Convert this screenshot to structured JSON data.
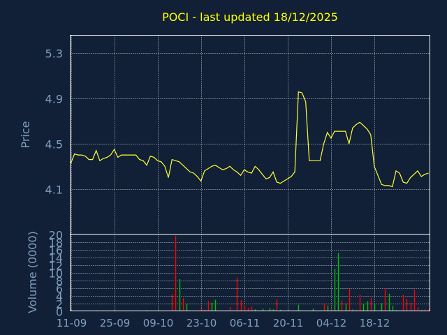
{
  "chart_data": {
    "type": "line",
    "title": "POCI - last updated 18/12/2025",
    "price_panel": {
      "ylabel": "Price",
      "yticks": [
        4.1,
        4.5,
        4.9,
        5.3
      ],
      "ylim": [
        3.7,
        5.46
      ],
      "values": [
        4.33,
        4.41,
        4.4,
        4.4,
        4.39,
        4.36,
        4.36,
        4.44,
        4.35,
        4.37,
        4.38,
        4.4,
        4.45,
        4.38,
        4.4,
        4.4,
        4.4,
        4.4,
        4.4,
        4.36,
        4.35,
        4.31,
        4.39,
        4.38,
        4.35,
        4.34,
        4.3,
        4.2,
        4.36,
        4.35,
        4.34,
        4.31,
        4.28,
        4.25,
        4.24,
        4.21,
        4.17,
        4.26,
        4.28,
        4.3,
        4.31,
        4.29,
        4.27,
        4.28,
        4.3,
        4.27,
        4.25,
        4.22,
        4.27,
        4.25,
        4.24,
        4.3,
        4.27,
        4.23,
        4.19,
        4.2,
        4.25,
        4.16,
        4.15,
        4.17,
        4.19,
        4.21,
        4.25,
        4.96,
        4.95,
        4.87,
        4.35,
        4.35,
        4.35,
        4.35,
        4.5,
        4.6,
        4.55,
        4.61,
        4.61,
        4.61,
        4.61,
        4.5,
        4.64,
        4.67,
        4.69,
        4.66,
        4.63,
        4.58,
        4.3,
        4.22,
        4.14,
        4.13,
        4.13,
        4.12,
        4.26,
        4.24,
        4.16,
        4.15,
        4.2,
        4.23,
        4.26,
        4.21,
        4.23,
        4.24
      ]
    },
    "volume_panel": {
      "ylabel": "Volume (0000)",
      "ylim": [
        0,
        20
      ],
      "yticks": [
        0,
        2,
        4,
        6,
        8,
        10,
        12,
        14,
        16,
        18,
        20
      ],
      "bars": [
        {
          "i": 7,
          "v": 0.1,
          "c": "red"
        },
        {
          "i": 12,
          "v": 0.1,
          "c": "red"
        },
        {
          "i": 21,
          "v": 0.2,
          "c": "green"
        },
        {
          "i": 28,
          "v": 4.3,
          "c": "red"
        },
        {
          "i": 29,
          "v": 19.6,
          "c": "red"
        },
        {
          "i": 30,
          "v": 8.3,
          "c": "green"
        },
        {
          "i": 31,
          "v": 3.4,
          "c": "red"
        },
        {
          "i": 32,
          "v": 1.8,
          "c": "green"
        },
        {
          "i": 36,
          "v": 0.7,
          "c": "red"
        },
        {
          "i": 37,
          "v": 0.3,
          "c": "red"
        },
        {
          "i": 38,
          "v": 2.6,
          "c": "red"
        },
        {
          "i": 39,
          "v": 2.1,
          "c": "green"
        },
        {
          "i": 40,
          "v": 2.9,
          "c": "green"
        },
        {
          "i": 44,
          "v": 1.0,
          "c": "red"
        },
        {
          "i": 46,
          "v": 8.6,
          "c": "red"
        },
        {
          "i": 47,
          "v": 2.8,
          "c": "red"
        },
        {
          "i": 48,
          "v": 1.5,
          "c": "red"
        },
        {
          "i": 49,
          "v": 0.8,
          "c": "red"
        },
        {
          "i": 50,
          "v": 1.1,
          "c": "red"
        },
        {
          "i": 51,
          "v": 0.4,
          "c": "green"
        },
        {
          "i": 53,
          "v": 0.6,
          "c": "green"
        },
        {
          "i": 55,
          "v": 0.7,
          "c": "green"
        },
        {
          "i": 56,
          "v": 0.4,
          "c": "green"
        },
        {
          "i": 57,
          "v": 3.0,
          "c": "red"
        },
        {
          "i": 58,
          "v": 0.3,
          "c": "green"
        },
        {
          "i": 63,
          "v": 1.6,
          "c": "green"
        },
        {
          "i": 67,
          "v": 0.6,
          "c": "green"
        },
        {
          "i": 70,
          "v": 2.0,
          "c": "red"
        },
        {
          "i": 71,
          "v": 1.4,
          "c": "green"
        },
        {
          "i": 72,
          "v": 0.5,
          "c": "red"
        },
        {
          "i": 73,
          "v": 11.0,
          "c": "green"
        },
        {
          "i": 74,
          "v": 15.1,
          "c": "green"
        },
        {
          "i": 75,
          "v": 2.7,
          "c": "red"
        },
        {
          "i": 76,
          "v": 1.8,
          "c": "green"
        },
        {
          "i": 77,
          "v": 5.7,
          "c": "red"
        },
        {
          "i": 78,
          "v": 0.4,
          "c": "green"
        },
        {
          "i": 79,
          "v": 0.3,
          "c": "red"
        },
        {
          "i": 80,
          "v": 4.3,
          "c": "red"
        },
        {
          "i": 81,
          "v": 1.9,
          "c": "green"
        },
        {
          "i": 82,
          "v": 2.5,
          "c": "green"
        },
        {
          "i": 83,
          "v": 3.4,
          "c": "red"
        },
        {
          "i": 84,
          "v": 1.9,
          "c": "green"
        },
        {
          "i": 86,
          "v": 2.0,
          "c": "green"
        },
        {
          "i": 87,
          "v": 5.8,
          "c": "red"
        },
        {
          "i": 88,
          "v": 4.5,
          "c": "green"
        },
        {
          "i": 89,
          "v": 1.3,
          "c": "green"
        },
        {
          "i": 90,
          "v": 0.2,
          "c": "green"
        },
        {
          "i": 92,
          "v": 4.2,
          "c": "red"
        },
        {
          "i": 93,
          "v": 3.2,
          "c": "red"
        },
        {
          "i": 94,
          "v": 2.1,
          "c": "red"
        },
        {
          "i": 95,
          "v": 5.6,
          "c": "red"
        },
        {
          "i": 96,
          "v": 0.9,
          "c": "red"
        },
        {
          "i": 97,
          "v": 0.2,
          "c": "green"
        },
        {
          "i": 98,
          "v": 0.4,
          "c": "red"
        },
        {
          "i": 99,
          "v": 0.6,
          "c": "red"
        }
      ]
    },
    "x_ticks": [
      {
        "i": 0,
        "label": "11-09"
      },
      {
        "i": 12,
        "label": "25-09"
      },
      {
        "i": 24,
        "label": "09-10"
      },
      {
        "i": 36,
        "label": "23-10"
      },
      {
        "i": 48,
        "label": "06-11"
      },
      {
        "i": 60,
        "label": "20-11"
      },
      {
        "i": 72,
        "label": "04-12"
      },
      {
        "i": 84,
        "label": "18-12"
      }
    ],
    "colors": {
      "background": "#112036",
      "price_line": "#ffff33",
      "up_volume": "#ff0000",
      "down_volume": "#00c000",
      "text": "#7f9fc0",
      "title": "#ffff00"
    },
    "grid": true
  }
}
